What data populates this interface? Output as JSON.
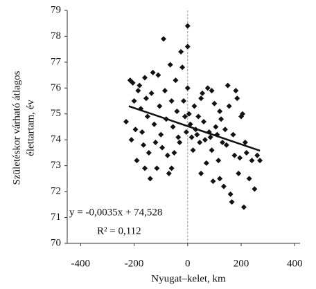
{
  "chart_data": {
    "type": "scatter",
    "y_label_lines": [
      "Születéskor várható átlagos",
      "élettartam, év"
    ],
    "x_label": "Nyugat–kelet, km",
    "annotations": [
      "y = -0,0035x + 74,528",
      "R² = 0,112"
    ],
    "color": "#111111",
    "xlim": [
      -450,
      420
    ],
    "ylim": [
      70,
      79
    ],
    "xticks": [
      -400,
      -200,
      0,
      200,
      400
    ],
    "yticks": [
      70,
      71,
      72,
      73,
      74,
      75,
      76,
      77,
      78,
      79
    ],
    "points": {
      "x": [
        -230,
        -215,
        -205,
        -200,
        -195,
        -190,
        -185,
        -180,
        -175,
        -170,
        -165,
        -160,
        -155,
        -150,
        -145,
        -140,
        -135,
        -130,
        -125,
        -120,
        -115,
        -110,
        -105,
        -100,
        -95,
        -90,
        -85,
        -80,
        -75,
        -70,
        -65,
        -60,
        -55,
        -50,
        -45,
        -40,
        -35,
        -30,
        -25,
        -20,
        -15,
        -10,
        -5,
        0,
        0,
        0,
        5,
        10,
        15,
        20,
        25,
        30,
        35,
        40,
        45,
        50,
        55,
        60,
        65,
        70,
        75,
        80,
        85,
        90,
        95,
        100,
        105,
        110,
        115,
        120,
        125,
        130,
        135,
        140,
        145,
        150,
        155,
        160,
        165,
        170,
        175,
        180,
        185,
        190,
        195,
        200,
        205,
        210,
        215,
        220,
        230,
        240,
        250,
        260,
        270,
        -210,
        -160,
        -60,
        50,
        120,
        90
      ],
      "y": [
        74.7,
        76.3,
        76.2,
        75.5,
        74.4,
        73.2,
        75.9,
        76.1,
        75.2,
        74.3,
        73.8,
        76.4,
        75.6,
        74.9,
        73.5,
        72.5,
        75.8,
        76.6,
        74.6,
        73.9,
        72.9,
        76.5,
        75.3,
        74.2,
        73.7,
        77.9,
        75.9,
        74.8,
        73.4,
        72.7,
        76.9,
        75.5,
        74.5,
        73.5,
        76.3,
        75.1,
        74.1,
        73.9,
        77.4,
        76.8,
        75.5,
        74.9,
        74.3,
        78.4,
        77.6,
        76.0,
        75.0,
        74.6,
        74.1,
        73.6,
        75.3,
        74.4,
        74.2,
        74.9,
        73.9,
        72.7,
        75.8,
        74.7,
        74.0,
        73.1,
        76.0,
        74.3,
        74.1,
        73.6,
        72.4,
        75.4,
        74.5,
        74.2,
        73.2,
        75.1,
        74.8,
        73.9,
        72.2,
        74.4,
        73.8,
        76.1,
        75.3,
        71.9,
        71.6,
        74.2,
        73.4,
        75.9,
        75.6,
        72.7,
        73.3,
        74.9,
        75.0,
        71.4,
        73.9,
        73.5,
        72.5,
        73.2,
        72.1,
        73.4,
        73.2,
        74.0,
        72.9,
        72.9,
        75.6,
        72.5,
        75.9
      ]
    },
    "trendline": {
      "x": [
        -220,
        270
      ],
      "y": [
        75.3,
        73.58
      ]
    }
  }
}
